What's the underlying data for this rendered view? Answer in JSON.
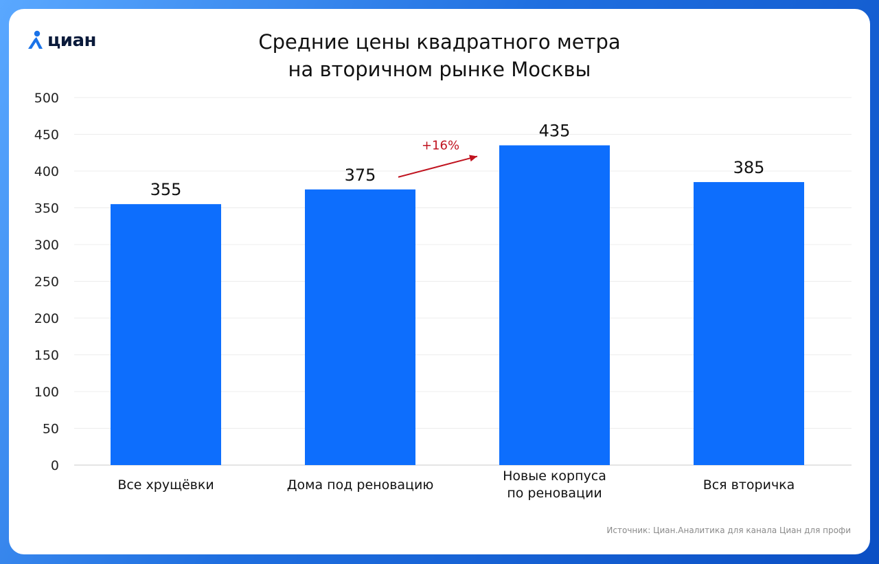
{
  "brand": {
    "name": "циан"
  },
  "source_note": "Источник: Циан.Аналитика для канала Циан для профи",
  "annotation": {
    "label": "+16%",
    "color": "#c0131f"
  },
  "colors": {
    "bar": "#0d6efd",
    "accent": "#1a73e8"
  },
  "chart_data": {
    "type": "bar",
    "title": [
      "Средние цены квадратного метра",
      "на вторичном рынке Москвы"
    ],
    "xlabel": "",
    "ylabel": "",
    "ylim": [
      0,
      500
    ],
    "yticks": [
      0,
      50,
      100,
      150,
      200,
      250,
      300,
      350,
      400,
      450,
      500
    ],
    "grid": true,
    "categories": [
      [
        "Все хрущёвки"
      ],
      [
        "Дома под реновацию"
      ],
      [
        "Новые корпуса",
        "по реновации"
      ],
      [
        "Вся вторичка"
      ]
    ],
    "values": [
      355,
      375,
      435,
      385
    ]
  }
}
